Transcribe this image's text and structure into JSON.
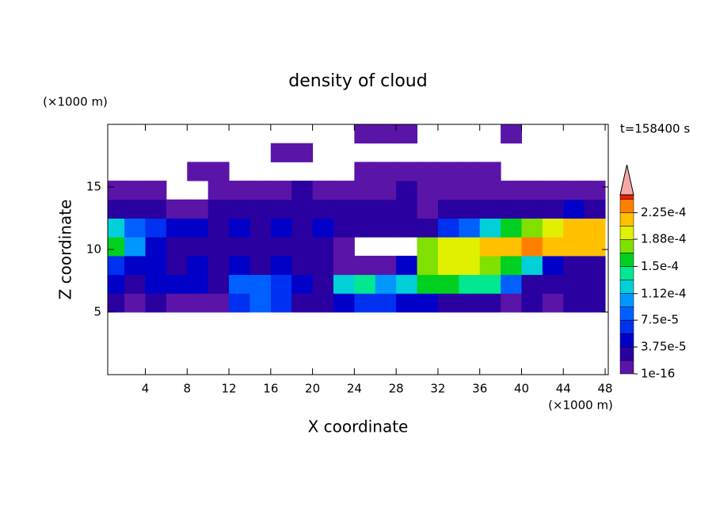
{
  "chart_data": {
    "type": "contour",
    "title": "density of cloud",
    "xlabel": "X coordinate",
    "ylabel": "Z coordinate",
    "x_unit": "(×1000 m)",
    "y_unit": "(×1000 m)",
    "annotation": "t=158400 s",
    "xlim": [
      0.4,
      48.3
    ],
    "ylim": [
      0,
      20
    ],
    "xticks": [
      4,
      8,
      12,
      16,
      20,
      24,
      28,
      32,
      36,
      40,
      44,
      48
    ],
    "yticks": [
      5,
      10,
      15
    ],
    "x": [
      1,
      3,
      5,
      7,
      9,
      11,
      13,
      15,
      17,
      19,
      21,
      23,
      25,
      27,
      29,
      31,
      33,
      35,
      37,
      39,
      41,
      43,
      45,
      47
    ],
    "y": [
      5.75,
      7.25,
      8.75,
      10.25,
      11.75,
      13.25,
      14.75,
      16.25,
      17.75,
      19.25
    ],
    "z": [
      [
        2e-05,
        1e-06,
        2e-05,
        1e-06,
        1e-06,
        1e-06,
        6e-05,
        8e-05,
        6e-05,
        3e-05,
        2e-05,
        4e-05,
        6e-05,
        7e-05,
        5e-05,
        4e-05,
        3e-05,
        2e-05,
        2e-05,
        1e-06,
        2e-05,
        1e-06,
        2e-05,
        2e-05
      ],
      [
        4e-05,
        3e-05,
        4e-05,
        4e-05,
        4e-05,
        2e-05,
        8e-05,
        9e-05,
        7e-05,
        5e-05,
        3e-05,
        0.00012,
        0.00014,
        0.00011,
        0.00013,
        0.00016,
        0.00015,
        0.00014,
        0.00014,
        8e-05,
        3e-05,
        2e-05,
        3e-05,
        2e-05
      ],
      [
        6e-05,
        4e-05,
        4e-05,
        3e-05,
        4e-05,
        3e-05,
        4e-05,
        3e-05,
        4e-05,
        3e-05,
        2e-05,
        1e-06,
        1e-06,
        1e-06,
        5e-05,
        0.00017,
        0.00019,
        0.00019,
        0.00018,
        0.00016,
        0.00012,
        4e-05,
        2e-05,
        3e-05
      ],
      [
        0.00015,
        0.0001,
        5e-05,
        3e-05,
        3e-05,
        3e-05,
        3e-05,
        3e-05,
        3e-05,
        3e-05,
        2e-05,
        1e-06,
        null,
        null,
        null,
        0.00018,
        0.0002,
        0.0002,
        0.00021,
        0.00022,
        0.00023,
        0.00022,
        0.00021,
        0.00022
      ],
      [
        0.00013,
        9e-05,
        6e-05,
        4e-05,
        4e-05,
        3e-05,
        4e-05,
        3e-05,
        4e-05,
        3e-05,
        4e-05,
        3e-05,
        2e-05,
        2e-05,
        2e-05,
        3e-05,
        6e-05,
        9e-05,
        0.00012,
        0.00015,
        0.00017,
        0.00019,
        0.00021,
        0.00022
      ],
      [
        2e-05,
        3e-05,
        2e-05,
        1e-06,
        1e-06,
        2e-05,
        2e-05,
        3e-05,
        2e-05,
        2e-05,
        3e-05,
        2e-05,
        2e-05,
        2e-05,
        2e-05,
        1e-06,
        2e-05,
        2e-05,
        3e-05,
        2e-05,
        2e-05,
        3e-05,
        4e-05,
        3e-05
      ],
      [
        1e-06,
        1e-06,
        1e-06,
        null,
        null,
        1e-06,
        1e-06,
        1e-06,
        1e-06,
        2e-05,
        1e-06,
        1e-06,
        1e-06,
        1e-06,
        2e-05,
        1e-06,
        1e-06,
        1e-06,
        1e-06,
        1e-06,
        1e-06,
        1e-06,
        1e-06,
        1e-06
      ],
      [
        null,
        null,
        null,
        null,
        1e-06,
        1e-06,
        null,
        null,
        null,
        null,
        null,
        null,
        1e-06,
        1e-06,
        1e-06,
        1e-06,
        1e-06,
        1e-06,
        1e-06,
        null,
        null,
        null,
        null,
        null
      ],
      [
        null,
        null,
        null,
        null,
        null,
        null,
        null,
        null,
        1e-06,
        1e-06,
        null,
        null,
        null,
        null,
        null,
        null,
        null,
        null,
        null,
        null,
        null,
        null,
        null,
        null
      ],
      [
        null,
        null,
        null,
        null,
        null,
        null,
        null,
        null,
        null,
        null,
        null,
        null,
        1e-06,
        1e-06,
        1e-06,
        null,
        null,
        null,
        null,
        1e-06,
        null,
        null,
        null,
        null
      ]
    ],
    "clim": [
      1e-16,
      0.00025
    ],
    "levels": [
      1e-16,
      1.875e-05,
      3.75e-05,
      5.625e-05,
      7.5e-05,
      9.375e-05,
      0.0001125,
      0.00013125,
      0.00015,
      0.00016875,
      0.0001875,
      0.00020625,
      0.000225,
      0.00024375
    ],
    "colors": [
      "#5a14a8",
      "#2a00a0",
      "#0000c8",
      "#0030f0",
      "#0060ff",
      "#0098ff",
      "#00d0d8",
      "#00e890",
      "#00d020",
      "#80e000",
      "#e0f000",
      "#ffc000",
      "#ff8000",
      "#f02000"
    ],
    "extend_color": "#f4a8a8",
    "cticks": [
      {
        "value": 1e-16,
        "label": "1e-16"
      },
      {
        "value": 3.75e-05,
        "label": "3.75e-5"
      },
      {
        "value": 7.5e-05,
        "label": "7.5e-5"
      },
      {
        "value": 0.000112,
        "label": "1.12e-4"
      },
      {
        "value": 0.00015,
        "label": "1.5e-4"
      },
      {
        "value": 0.000188,
        "label": "1.88e-4"
      },
      {
        "value": 0.000225,
        "label": "2.25e-4"
      }
    ]
  }
}
